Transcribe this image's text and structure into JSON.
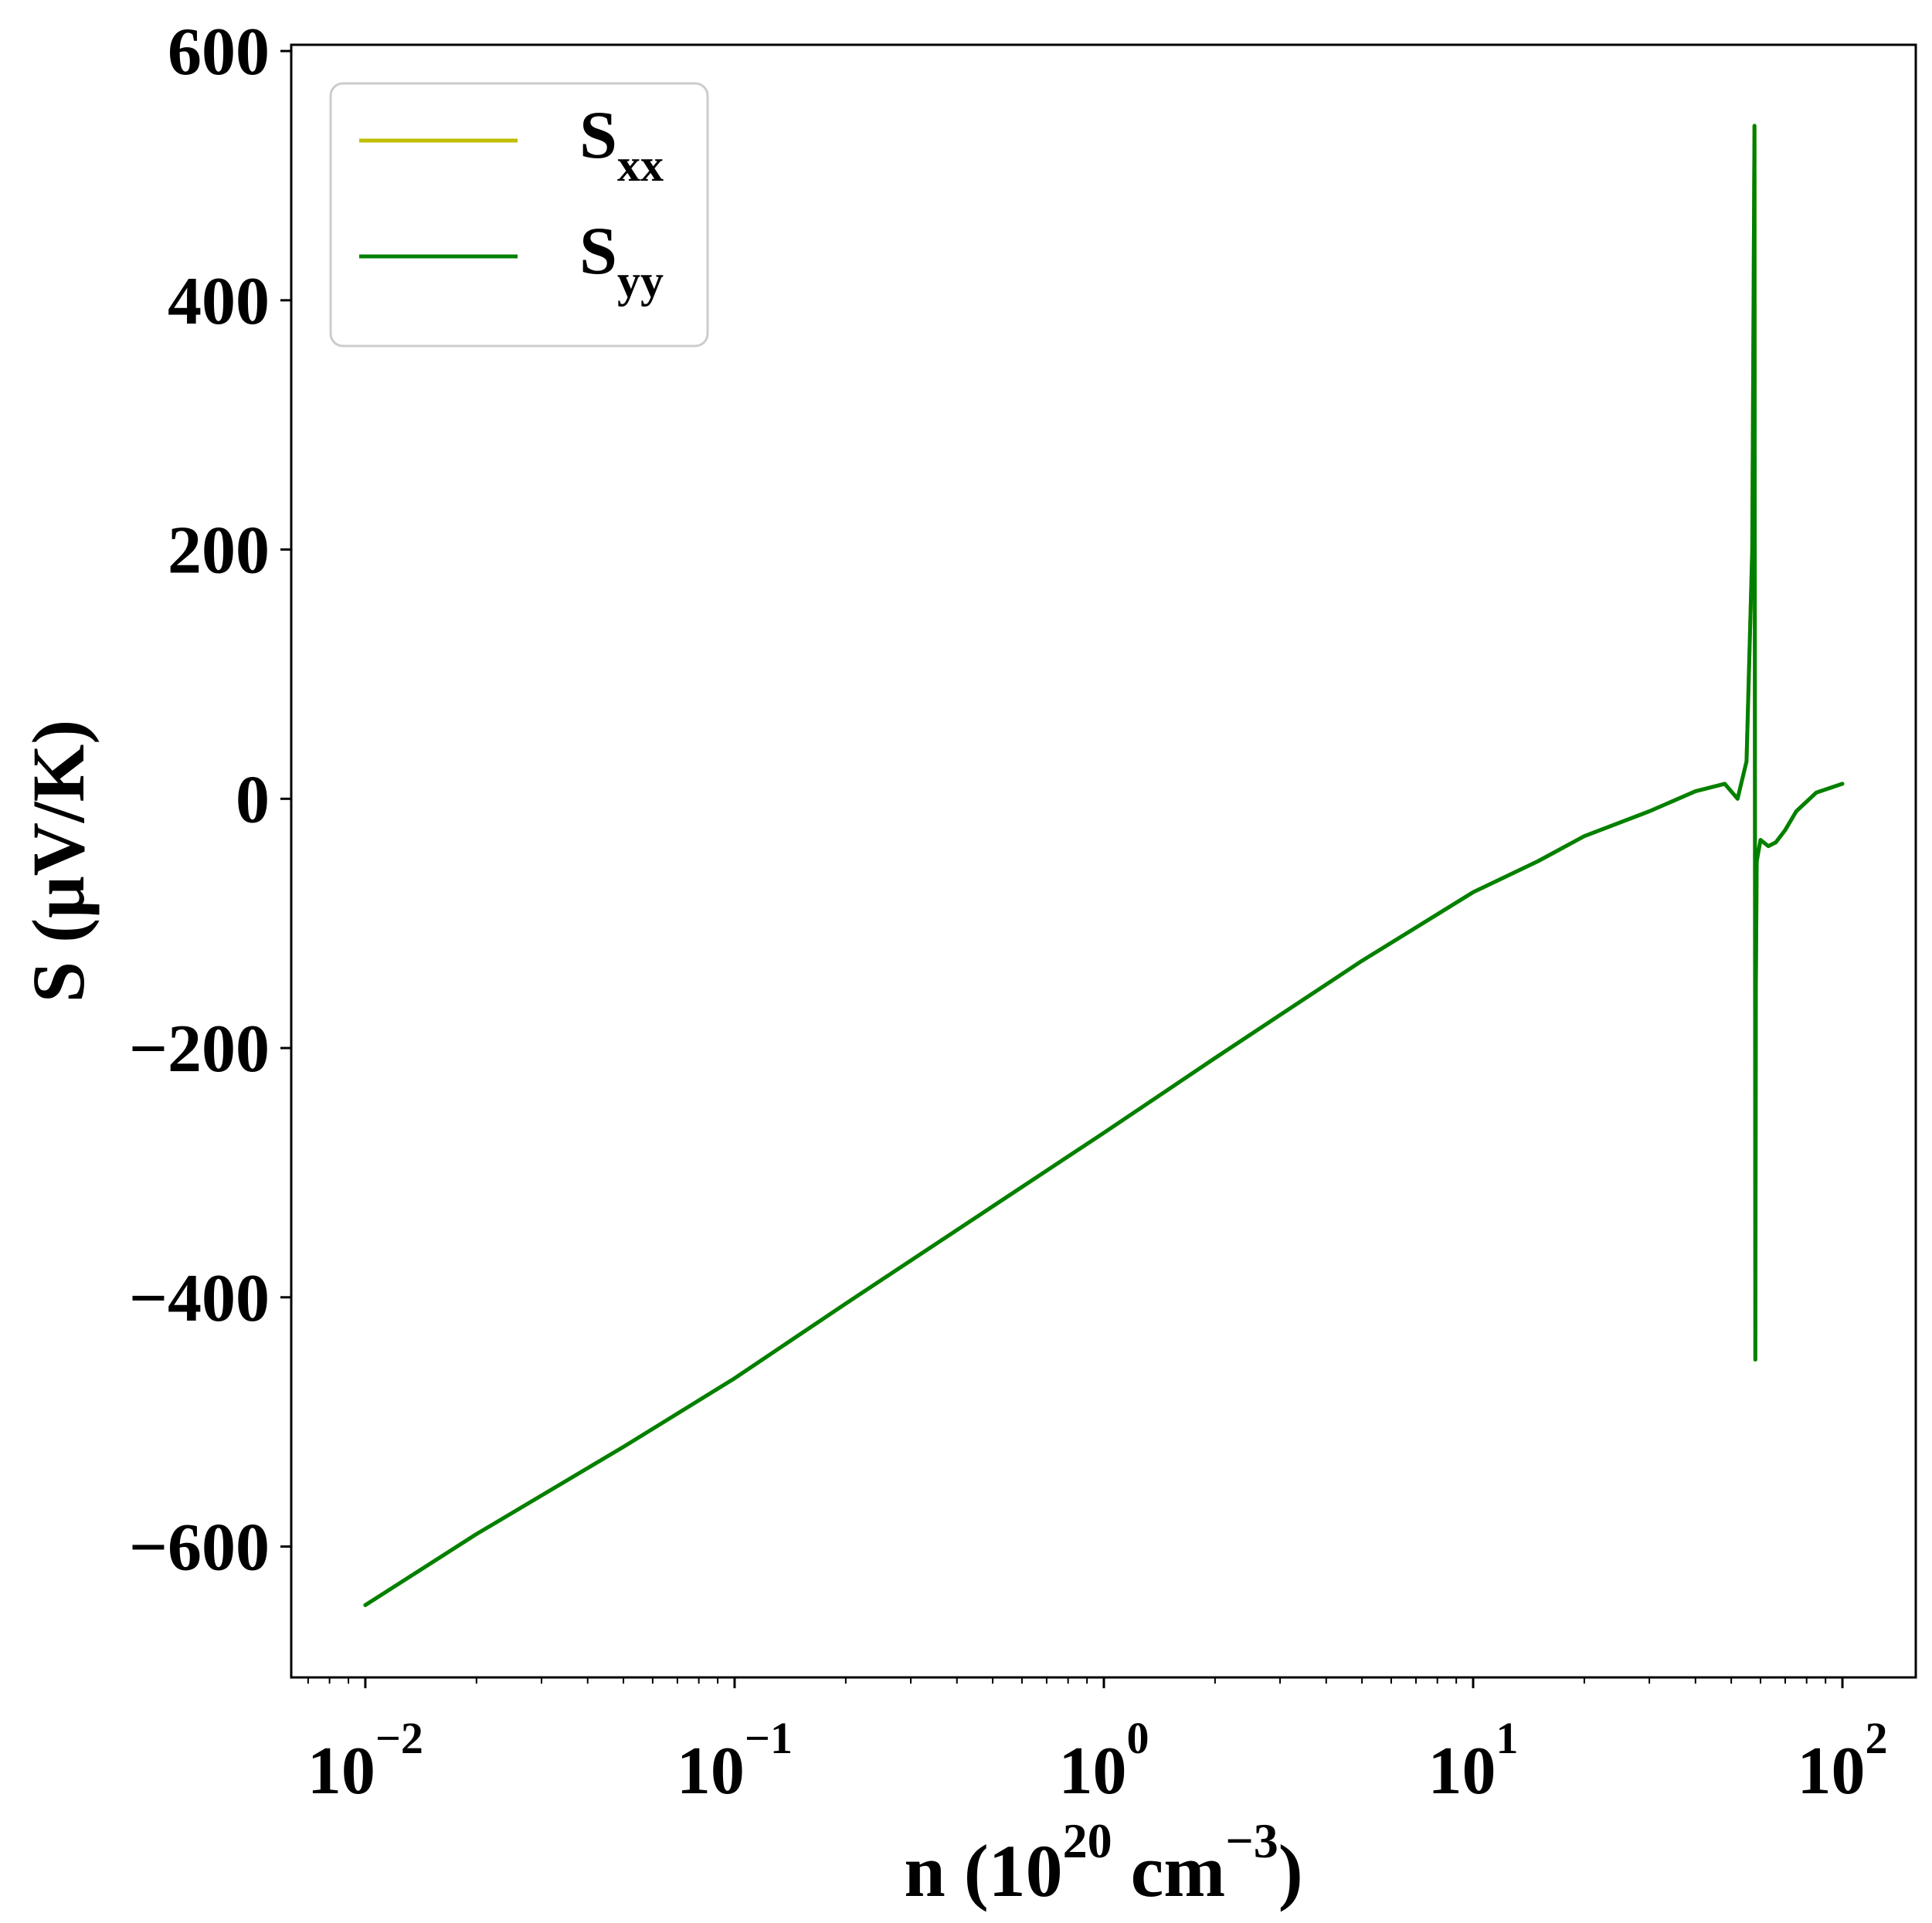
{
  "chart_data": {
    "type": "line",
    "title": "",
    "xlabel": {
      "prefix": "n (10",
      "sup1": "20",
      "mid": " cm",
      "sup2": "−3",
      "suffix": ")"
    },
    "ylabel": "S (μV/K)",
    "xscale": "log",
    "xlim": [
      0.0063,
      158
    ],
    "ylim": [
      -705,
      605
    ],
    "x_ticks": [
      {
        "value": 0.01,
        "base": "10",
        "exp": "−2"
      },
      {
        "value": 0.1,
        "base": "10",
        "exp": "−1"
      },
      {
        "value": 1,
        "base": "10",
        "exp": "0"
      },
      {
        "value": 10,
        "base": "10",
        "exp": "1"
      },
      {
        "value": 100,
        "base": "10",
        "exp": "2"
      }
    ],
    "y_ticks": [
      {
        "value": 600,
        "label": "600"
      },
      {
        "value": 400,
        "label": "400"
      },
      {
        "value": 200,
        "label": "200"
      },
      {
        "value": 0,
        "label": "0"
      },
      {
        "value": -200,
        "label": "−200"
      },
      {
        "value": -400,
        "label": "−400"
      },
      {
        "value": -600,
        "label": "−600"
      }
    ],
    "grid": false,
    "legend_position": "top-left",
    "series": [
      {
        "name": {
          "base": "S",
          "sub": "xx"
        },
        "color": "#bfbf00",
        "x": [
          0.01,
          0.02,
          0.05,
          0.1,
          0.2,
          0.5,
          1,
          2,
          5,
          10,
          15,
          20,
          30,
          40,
          48,
          52,
          55,
          57,
          57.8,
          58.1,
          58.3,
          58.6,
          60,
          63,
          66,
          70,
          75,
          85,
          100
        ],
        "y": [
          -647,
          -590,
          -520,
          -465,
          -405,
          -327,
          -268,
          -208,
          -130,
          -75,
          -50,
          -30,
          -10,
          6,
          12,
          0,
          30,
          200,
          540,
          -450,
          -150,
          -50,
          -33,
          -38,
          -35,
          -25,
          -10,
          5,
          12
        ]
      },
      {
        "name": {
          "base": "S",
          "sub": "yy"
        },
        "color": "#008000",
        "x": [
          0.01,
          0.02,
          0.05,
          0.1,
          0.2,
          0.5,
          1,
          2,
          5,
          10,
          15,
          20,
          30,
          40,
          48,
          52,
          55,
          57,
          57.8,
          58.1,
          58.3,
          58.6,
          60,
          63,
          66,
          70,
          75,
          85,
          100
        ],
        "y": [
          -647,
          -590,
          -520,
          -465,
          -405,
          -327,
          -268,
          -208,
          -130,
          -75,
          -50,
          -30,
          -10,
          6,
          12,
          0,
          30,
          200,
          540,
          -450,
          -150,
          -50,
          -33,
          -38,
          -35,
          -25,
          -10,
          5,
          12
        ]
      }
    ]
  }
}
